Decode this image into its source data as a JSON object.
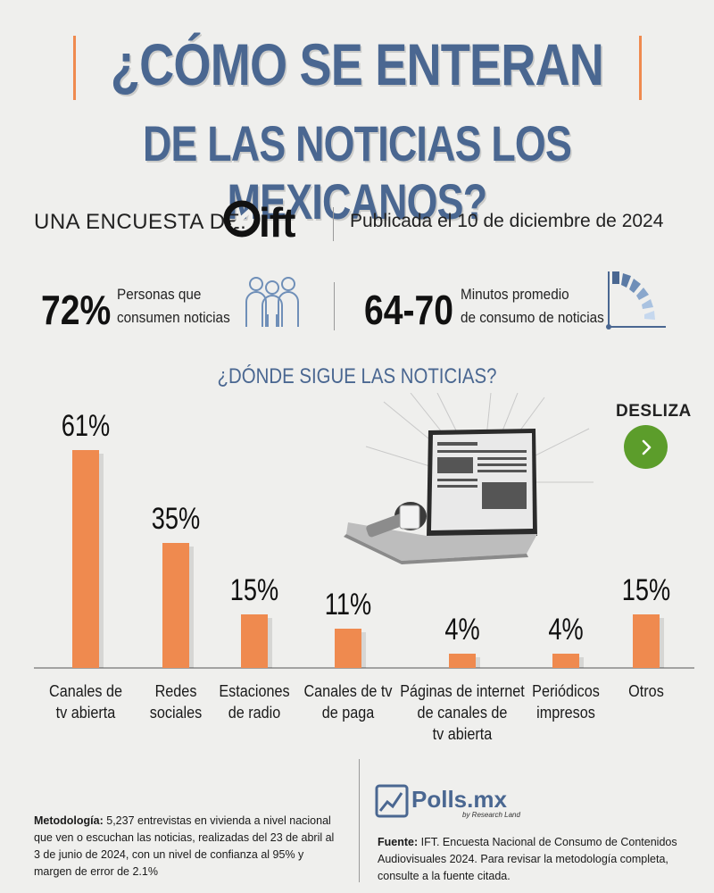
{
  "header": {
    "title_line1": "¿CÓMO SE ENTERAN",
    "title_line2": "DE LAS NOTICIAS LOS MEXICANOS?"
  },
  "survey": {
    "by_label": "UNA ENCUESTA DE:",
    "logo_text": "ift",
    "published": "Publicada el 10 de diciembre de 2024"
  },
  "stats": {
    "stat1_value": "72%",
    "stat1_desc_line1": "Personas que",
    "stat1_desc_line2": "consumen noticias",
    "stat2_value": "64-70",
    "stat2_desc_line1": "Minutos promedio",
    "stat2_desc_line2": "de consumo de noticias",
    "people_icon": "people-group-icon",
    "clock_icon": "clock-gauge-icon"
  },
  "slider": {
    "label": "DESLIZA",
    "icon": "chevron-right-icon"
  },
  "colors": {
    "title": "#4a6791",
    "bar": "#ef8a4f",
    "button": "#5c9d2b"
  },
  "chart_data": {
    "type": "bar",
    "title": "¿DÓNDE SIGUE LAS NOTICIAS?",
    "categories": [
      [
        "Canales de",
        "tv abierta"
      ],
      [
        "Redes",
        "sociales"
      ],
      [
        "Estaciones",
        "de radio"
      ],
      [
        "Canales de tv",
        "de paga"
      ],
      [
        "Páginas de internet",
        "de canales de",
        "tv abierta"
      ],
      [
        "Periódicos",
        "impresos"
      ],
      [
        "Otros"
      ]
    ],
    "values": [
      61,
      35,
      15,
      11,
      4,
      4,
      15
    ],
    "value_labels": [
      "61%",
      "35%",
      "15%",
      "11%",
      "4%",
      "4%",
      "15%"
    ],
    "ylim": [
      0,
      61
    ]
  },
  "footer": {
    "method_title": "Metodología:",
    "method_text": "5,237 entrevistas en vivienda a nivel nacional que ven o escuchan las noticias, realizadas del 23 de abril al 3 de junio de 2024, con un nivel de confianza al 95% y margen de error de 2.1%",
    "brand": "Polls.mx",
    "brand_sub": "by Research Land",
    "source_title": "Fuente:",
    "source_text": "IFT. Encuesta Nacional de Consumo de Contenidos Audiovisuales 2024. Para revisar la metodología completa, consulte a la fuente citada."
  }
}
